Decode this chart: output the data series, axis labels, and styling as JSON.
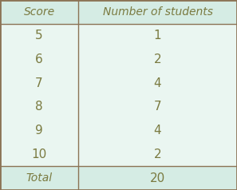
{
  "col1_header": "Score",
  "col2_header": "Number of students",
  "rows": [
    [
      "5",
      "1"
    ],
    [
      "6",
      "2"
    ],
    [
      "7",
      "4"
    ],
    [
      "8",
      "7"
    ],
    [
      "9",
      "4"
    ],
    [
      "10",
      "2"
    ]
  ],
  "total_label": "Total",
  "total_value": "20",
  "bg_color": "#e8f5f0",
  "header_bg_color": "#d5ece4",
  "data_bg_color": "#eaf6f1",
  "border_color": "#8b7355",
  "text_color": "#7a7a40",
  "col_split": 0.33,
  "header_fontsize": 10,
  "data_fontsize": 11,
  "figwidth": 2.97,
  "figheight": 2.38,
  "dpi": 100
}
